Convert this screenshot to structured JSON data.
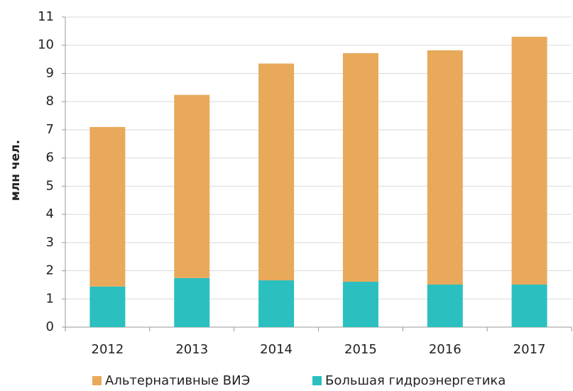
{
  "chart_data": {
    "type": "stacked_bar",
    "y_label": "млн чел.",
    "categories": [
      "2012",
      "2013",
      "2014",
      "2015",
      "2016",
      "2017"
    ],
    "series": [
      {
        "name": "Альтернативные ВИЭ",
        "color": "#e8a95b",
        "values": [
          5.66,
          6.5,
          7.69,
          8.11,
          8.31,
          8.79
        ]
      },
      {
        "name": "Большая гидроэнергетика",
        "color": "#2bbfbf",
        "values": [
          1.44,
          1.74,
          1.66,
          1.61,
          1.51,
          1.51
        ]
      }
    ],
    "stack_from_bottom": [
      "Большая гидроэнергетика",
      "Альтернативные ВИЭ"
    ],
    "ylim": [
      0,
      11
    ],
    "yticks": [
      0,
      1,
      2,
      3,
      4,
      5,
      6,
      7,
      8,
      9,
      10,
      11
    ],
    "grid": true,
    "legend": "bottom"
  }
}
